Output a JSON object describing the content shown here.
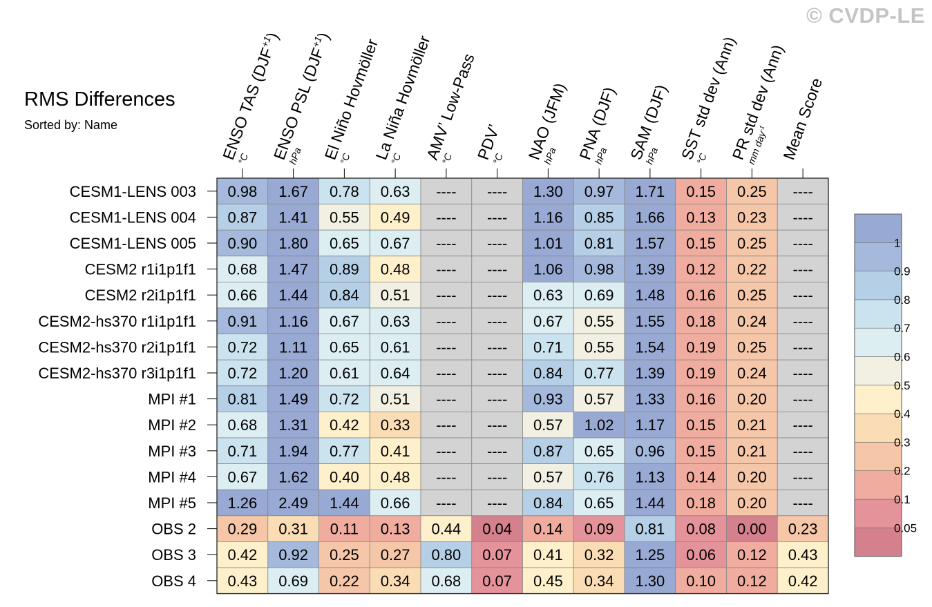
{
  "watermark": "© CVDP-LE",
  "chart_data": {
    "type": "heatmap",
    "title": "RMS Differences",
    "subtitle": "Sorted by: Name",
    "columns": [
      {
        "label": "ENSO TAS (DJF",
        "sup": "+1",
        "close": ")",
        "unit": "°C"
      },
      {
        "label": "ENSO PSL (DJF",
        "sup": "+1",
        "close": ")",
        "unit": "hPa"
      },
      {
        "label": "El Niño Hovmöller",
        "unit": "°C"
      },
      {
        "label": "La Niña Hovmöller",
        "unit": "°C"
      },
      {
        "label": "AMV’ Low-Pass",
        "unit": "°C"
      },
      {
        "label": "PDV’",
        "unit": "°C"
      },
      {
        "label": "NAO (JFM)",
        "unit": "hPa"
      },
      {
        "label": "PNA (DJF)",
        "unit": "hPa"
      },
      {
        "label": "SAM (DJF)",
        "unit": "hPa"
      },
      {
        "label": "SST std dev (Ann)",
        "unit": "°C"
      },
      {
        "label": "PR std dev (Ann)",
        "unit": "mm day",
        "unit_sup": "-1"
      },
      {
        "label": "Mean Score",
        "unit": ""
      }
    ],
    "rows": [
      "CESM1-LENS 003",
      "CESM1-LENS 004",
      "CESM1-LENS 005",
      "CESM2 r1i1p1f1",
      "CESM2 r2i1p1f1",
      "CESM2-hs370 r1i1p1f1",
      "CESM2-hs370 r2i1p1f1",
      "CESM2-hs370 r3i1p1f1",
      "MPI #1",
      "MPI #2",
      "MPI #3",
      "MPI #4",
      "MPI #5",
      "OBS 2",
      "OBS 3",
      "OBS 4"
    ],
    "missing_label": "----",
    "values": [
      [
        "0.98",
        "1.67",
        "0.78",
        "0.63",
        null,
        null,
        "1.30",
        "0.97",
        "1.71",
        "0.15",
        "0.25",
        null
      ],
      [
        "0.87",
        "1.41",
        "0.55",
        "0.49",
        null,
        null,
        "1.16",
        "0.85",
        "1.66",
        "0.13",
        "0.23",
        null
      ],
      [
        "0.90",
        "1.80",
        "0.65",
        "0.67",
        null,
        null,
        "1.01",
        "0.81",
        "1.57",
        "0.15",
        "0.25",
        null
      ],
      [
        "0.68",
        "1.47",
        "0.89",
        "0.48",
        null,
        null,
        "1.06",
        "0.98",
        "1.39",
        "0.12",
        "0.22",
        null
      ],
      [
        "0.66",
        "1.44",
        "0.84",
        "0.51",
        null,
        null,
        "0.63",
        "0.69",
        "1.48",
        "0.16",
        "0.25",
        null
      ],
      [
        "0.91",
        "1.16",
        "0.67",
        "0.63",
        null,
        null,
        "0.67",
        "0.55",
        "1.55",
        "0.18",
        "0.24",
        null
      ],
      [
        "0.72",
        "1.11",
        "0.65",
        "0.61",
        null,
        null,
        "0.71",
        "0.55",
        "1.54",
        "0.19",
        "0.25",
        null
      ],
      [
        "0.72",
        "1.20",
        "0.61",
        "0.64",
        null,
        null,
        "0.84",
        "0.77",
        "1.39",
        "0.19",
        "0.24",
        null
      ],
      [
        "0.81",
        "1.49",
        "0.72",
        "0.51",
        null,
        null,
        "0.93",
        "0.57",
        "1.33",
        "0.16",
        "0.20",
        null
      ],
      [
        "0.68",
        "1.31",
        "0.42",
        "0.33",
        null,
        null,
        "0.57",
        "1.02",
        "1.17",
        "0.15",
        "0.21",
        null
      ],
      [
        "0.71",
        "1.94",
        "0.77",
        "0.41",
        null,
        null,
        "0.87",
        "0.65",
        "0.96",
        "0.15",
        "0.21",
        null
      ],
      [
        "0.67",
        "1.62",
        "0.40",
        "0.48",
        null,
        null,
        "0.57",
        "0.76",
        "1.13",
        "0.14",
        "0.20",
        null
      ],
      [
        "1.26",
        "2.49",
        "1.44",
        "0.66",
        null,
        null,
        "0.84",
        "0.65",
        "1.44",
        "0.18",
        "0.20",
        null
      ],
      [
        "0.29",
        "0.31",
        "0.11",
        "0.13",
        "0.44",
        "0.04",
        "0.14",
        "0.09",
        "0.81",
        "0.08",
        "0.00",
        "0.23"
      ],
      [
        "0.42",
        "0.92",
        "0.25",
        "0.27",
        "0.80",
        "0.07",
        "0.41",
        "0.32",
        "1.25",
        "0.06",
        "0.12",
        "0.43"
      ],
      [
        "0.43",
        "0.69",
        "0.22",
        "0.34",
        "0.68",
        "0.07",
        "0.45",
        "0.34",
        "1.30",
        "0.10",
        "0.12",
        "0.42"
      ]
    ],
    "colorbar": {
      "levels": [
        0.05,
        0.1,
        0.2,
        0.3,
        0.4,
        0.5,
        0.6,
        0.7,
        0.8,
        0.9,
        1
      ],
      "labels": [
        "0.05",
        "0.1",
        "0.2",
        "0.3",
        "0.4",
        "0.5",
        "0.6",
        "0.7",
        "0.8",
        "0.9",
        "1"
      ],
      "colors": [
        "#d4808d",
        "#e4939a",
        "#f0ad9f",
        "#f6c6a8",
        "#fbddb5",
        "#fdf0ca",
        "#f1f0e2",
        "#ddeef3",
        "#cbe2ef",
        "#b5cfe6",
        "#a4b9dc",
        "#98a9d3"
      ],
      "missing_color": "#d3d3d3"
    }
  }
}
